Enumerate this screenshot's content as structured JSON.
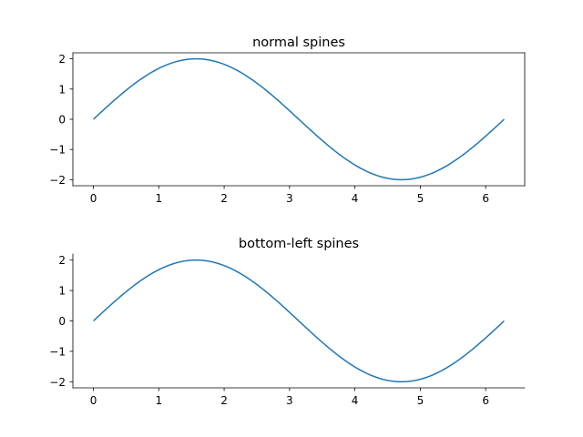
{
  "chart_data": [
    {
      "type": "line",
      "title": "normal spines",
      "spines": [
        "left",
        "bottom",
        "top",
        "right"
      ],
      "xlabel": "",
      "ylabel": "",
      "xlim": [
        -0.314,
        6.597
      ],
      "ylim": [
        -2.2,
        2.2
      ],
      "xticks": [
        0,
        1,
        2,
        3,
        4,
        5,
        6
      ],
      "yticks": [
        -2,
        -1,
        0,
        1,
        2
      ],
      "grid": false,
      "series": [
        {
          "function": "2*sin(x)",
          "color": "#1f77b4",
          "x": [
            0,
            0.25,
            0.5,
            0.75,
            1.0,
            1.25,
            1.5708,
            1.75,
            2.0,
            2.25,
            2.5,
            2.75,
            3.0,
            3.25,
            3.5,
            3.75,
            4.0,
            4.25,
            4.7124,
            5.0,
            5.25,
            5.5,
            5.75,
            6.0,
            6.2832
          ],
          "y": [
            0,
            0.495,
            0.959,
            1.363,
            1.683,
            1.898,
            2.0,
            1.968,
            1.819,
            1.556,
            1.197,
            0.763,
            0.282,
            -0.217,
            -0.701,
            -1.143,
            -1.514,
            -1.79,
            -2.0,
            -1.918,
            -1.718,
            -1.411,
            -1.017,
            -0.559,
            0
          ]
        }
      ]
    },
    {
      "type": "line",
      "title": "bottom-left spines",
      "spines": [
        "left",
        "bottom"
      ],
      "xlabel": "",
      "ylabel": "",
      "xlim": [
        -0.314,
        6.597
      ],
      "ylim": [
        -2.2,
        2.2
      ],
      "xticks": [
        0,
        1,
        2,
        3,
        4,
        5,
        6
      ],
      "yticks": [
        -2,
        -1,
        0,
        1,
        2
      ],
      "grid": false,
      "series": [
        {
          "function": "2*sin(x)",
          "color": "#1f77b4",
          "x": [
            0,
            0.25,
            0.5,
            0.75,
            1.0,
            1.25,
            1.5708,
            1.75,
            2.0,
            2.25,
            2.5,
            2.75,
            3.0,
            3.25,
            3.5,
            3.75,
            4.0,
            4.25,
            4.7124,
            5.0,
            5.25,
            5.5,
            5.75,
            6.0,
            6.2832
          ],
          "y": [
            0,
            0.495,
            0.959,
            1.363,
            1.683,
            1.898,
            2.0,
            1.968,
            1.819,
            1.556,
            1.197,
            0.763,
            0.282,
            -0.217,
            -0.701,
            -1.143,
            -1.514,
            -1.79,
            -2.0,
            -1.918,
            -1.718,
            -1.411,
            -1.017,
            -0.559,
            0
          ]
        }
      ]
    }
  ]
}
